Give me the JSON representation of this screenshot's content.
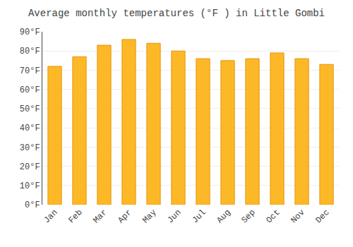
{
  "chart_data": {
    "type": "bar",
    "title": "Average monthly temperatures (°F ) in Little Gombi",
    "categories": [
      "Jan",
      "Feb",
      "Mar",
      "Apr",
      "May",
      "Jun",
      "Jul",
      "Aug",
      "Sep",
      "Oct",
      "Nov",
      "Dec"
    ],
    "values": [
      72,
      77,
      83,
      86,
      84,
      80,
      76,
      75,
      76,
      79,
      76,
      73
    ],
    "color": "#FDB827",
    "ylim": [
      0,
      90
    ],
    "yticks": [
      {
        "value": 0,
        "label": "0°F"
      },
      {
        "value": 10,
        "label": "10°F"
      },
      {
        "value": 20,
        "label": "20°F"
      },
      {
        "value": 30,
        "label": "30°F"
      },
      {
        "value": 40,
        "label": "40°F"
      },
      {
        "value": 50,
        "label": "50°F"
      },
      {
        "value": 60,
        "label": "60°F"
      },
      {
        "value": 70,
        "label": "70°F"
      },
      {
        "value": 80,
        "label": "80°F"
      },
      {
        "value": 90,
        "label": "90°F"
      }
    ],
    "grid": true
  }
}
